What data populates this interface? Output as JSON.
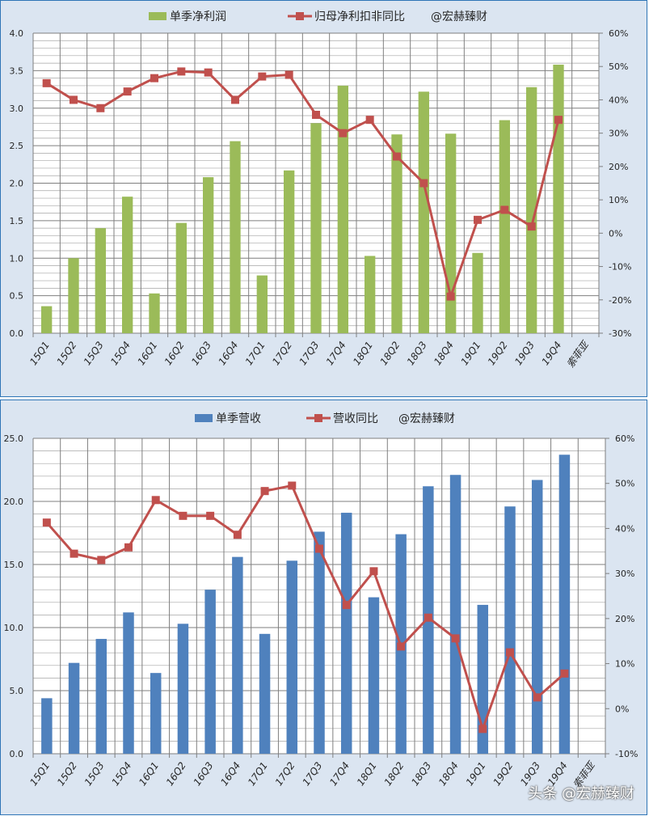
{
  "chart_data": [
    {
      "type": "bar",
      "title": "",
      "legend": [
        "单季净利润",
        "归母净利扣非同比",
        "@宏赫臻财"
      ],
      "legend_position": "top",
      "grid": true,
      "categories": [
        "15Q1",
        "15Q2",
        "15Q3",
        "15Q4",
        "16Q1",
        "16Q2",
        "16Q3",
        "16Q4",
        "17Q1",
        "17Q2",
        "17Q3",
        "17Q4",
        "18Q1",
        "18Q2",
        "18Q3",
        "18Q4",
        "19Q1",
        "19Q2",
        "19Q3",
        "19Q4",
        "索菲亚"
      ],
      "ylim": [
        0,
        4.0
      ],
      "y_ticks": [
        "0.0",
        "0.5",
        "1.0",
        "1.5",
        "2.0",
        "2.5",
        "3.0",
        "3.5",
        "4.0"
      ],
      "y2lim": [
        -30,
        60
      ],
      "y2_ticks": [
        "-30%",
        "-20%",
        "-10%",
        "0%",
        "10%",
        "20%",
        "30%",
        "40%",
        "50%",
        "60%"
      ],
      "series": [
        {
          "name": "单季净利润",
          "type": "bar",
          "axis": "left",
          "color": "#9bbb59",
          "values": [
            0.36,
            1.0,
            1.4,
            1.82,
            0.53,
            1.47,
            2.08,
            2.56,
            0.77,
            2.17,
            2.8,
            3.3,
            1.03,
            2.65,
            3.22,
            2.66,
            1.07,
            2.84,
            3.28,
            3.58,
            null
          ]
        },
        {
          "name": "归母净利扣非同比",
          "type": "line",
          "axis": "right",
          "color": "#c0504d",
          "unit": "%",
          "values": [
            45,
            40,
            37.5,
            42.5,
            46.5,
            48.5,
            48.2,
            40,
            47,
            47.5,
            35.5,
            30,
            34,
            23,
            15,
            -19,
            4,
            7,
            2,
            34,
            null
          ]
        }
      ]
    },
    {
      "type": "bar",
      "title": "",
      "legend": [
        "单季营收",
        "营收同比",
        "@宏赫臻财"
      ],
      "legend_position": "top",
      "grid": true,
      "categories": [
        "15Q1",
        "15Q2",
        "15Q3",
        "15Q4",
        "16Q1",
        "16Q2",
        "16Q3",
        "16Q4",
        "17Q1",
        "17Q2",
        "17Q3",
        "17Q4",
        "18Q1",
        "18Q2",
        "18Q3",
        "18Q4",
        "19Q1",
        "19Q2",
        "19Q3",
        "19Q4",
        "索菲亚"
      ],
      "ylim": [
        0,
        25.0
      ],
      "y_ticks": [
        "0.0",
        "5.0",
        "10.0",
        "15.0",
        "20.0",
        "25.0"
      ],
      "y2lim": [
        -10,
        60
      ],
      "y2_ticks": [
        "-10%",
        "0%",
        "10%",
        "20%",
        "30%",
        "40%",
        "50%",
        "60%"
      ],
      "series": [
        {
          "name": "单季营收",
          "type": "bar",
          "axis": "left",
          "color": "#4f81bd",
          "values": [
            4.4,
            7.2,
            9.1,
            11.2,
            6.4,
            10.3,
            13.0,
            15.6,
            9.5,
            15.3,
            17.6,
            19.1,
            12.4,
            17.4,
            21.2,
            22.1,
            11.8,
            19.6,
            21.7,
            23.7,
            null
          ]
        },
        {
          "name": "营收同比",
          "type": "line",
          "axis": "right",
          "color": "#c0504d",
          "unit": "%",
          "values": [
            41.3,
            34.4,
            33.0,
            35.8,
            46.3,
            42.8,
            42.8,
            38.6,
            48.3,
            49.5,
            35.5,
            23.0,
            30.5,
            13.8,
            20.2,
            15.6,
            -4.5,
            12.5,
            2.5,
            7.8,
            null
          ]
        }
      ]
    }
  ],
  "watermark": "头条 @宏赫臻财"
}
